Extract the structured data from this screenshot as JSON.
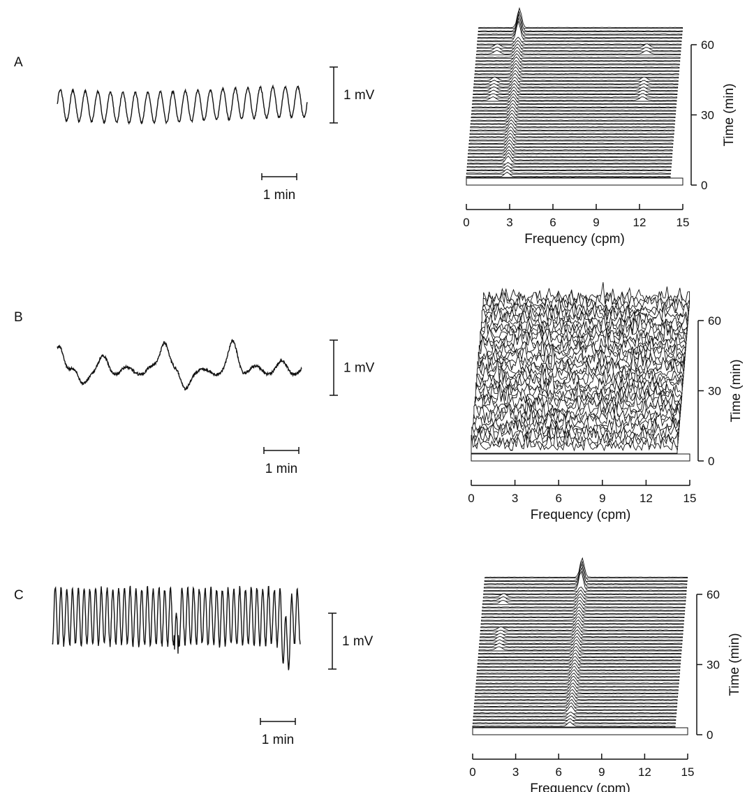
{
  "chart_data": [
    {
      "panel": "A",
      "type": "line",
      "trace_signal": "regular",
      "trace_cycles": 20,
      "voltage_scale": "1 mV",
      "time_scale": "1 min",
      "spectrum": {
        "type": "area",
        "pattern": "single-peak",
        "peak_frequency_cpm": 3,
        "secondary_peaks_cpm": [
          1.5,
          12.5
        ],
        "xlabel": "Frequency (cpm)",
        "ylabel": "Time (min)",
        "xticks": [
          "0",
          "3",
          "6",
          "9",
          "12",
          "15"
        ],
        "yticks": [
          "0",
          "30",
          "60"
        ],
        "xlim": [
          0,
          15
        ],
        "ylim": [
          0,
          60
        ]
      }
    },
    {
      "panel": "B",
      "type": "line",
      "trace_signal": "irregular",
      "trace_cycles": 6,
      "voltage_scale": "1 mV",
      "time_scale": "1 min",
      "spectrum": {
        "type": "area",
        "pattern": "broadband",
        "xlabel": "Frequency (cpm)",
        "ylabel": "Time (min)",
        "xticks": [
          "0",
          "3",
          "6",
          "9",
          "12",
          "15"
        ],
        "yticks": [
          "0",
          "30",
          "60"
        ],
        "xlim": [
          0,
          15
        ],
        "ylim": [
          0,
          60
        ]
      }
    },
    {
      "panel": "C",
      "type": "line",
      "trace_signal": "fast",
      "trace_cycles": 43,
      "voltage_scale": "1 mV",
      "time_scale": "1 min",
      "spectrum": {
        "type": "area",
        "pattern": "single-peak",
        "peak_frequency_cpm": 7.2,
        "secondary_peaks_cpm": [
          1.5
        ],
        "xlabel": "Frequency (cpm)",
        "ylabel": "Time (min)",
        "xticks": [
          "0",
          "3",
          "6",
          "9",
          "12",
          "15"
        ],
        "yticks": [
          "0",
          "30",
          "60"
        ],
        "xlim": [
          0,
          15
        ],
        "ylim": [
          0,
          60
        ]
      }
    }
  ]
}
